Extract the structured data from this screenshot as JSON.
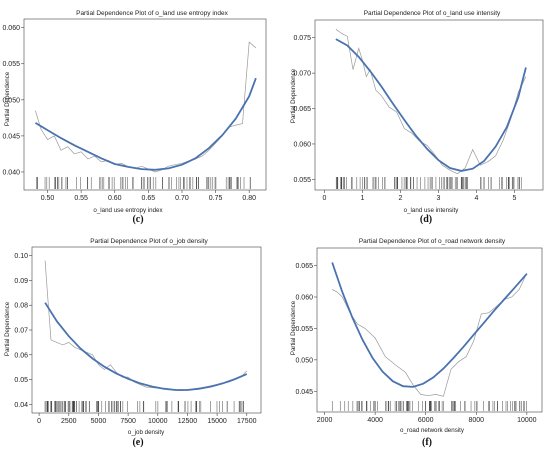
{
  "chart_data": [
    {
      "id": "c",
      "panel_label": "(c)",
      "type": "line",
      "title": "Partial Dependence Plot of o_land use entropy index",
      "xlabel": "o_land use entropy index",
      "ylabel": "Partial Dependence",
      "xlim": [
        0.465,
        0.825
      ],
      "ylim": [
        0.0375,
        0.0612
      ],
      "xticks": [
        0.5,
        0.55,
        0.6,
        0.65,
        0.7,
        0.75,
        0.8
      ],
      "xtick_labels": [
        "0.50",
        "0.55",
        "0.60",
        "0.65",
        "0.70",
        "0.75",
        "0.80"
      ],
      "yticks": [
        0.04,
        0.045,
        0.05,
        0.055,
        0.06
      ],
      "ytick_labels": [
        "0.040",
        "0.045",
        "0.050",
        "0.055",
        "0.060"
      ],
      "series": [
        {
          "style": "raw",
          "x": [
            0.482,
            0.49,
            0.5,
            0.51,
            0.52,
            0.53,
            0.54,
            0.55,
            0.56,
            0.57,
            0.58,
            0.59,
            0.6,
            0.61,
            0.62,
            0.63,
            0.64,
            0.65,
            0.66,
            0.67,
            0.68,
            0.69,
            0.7,
            0.71,
            0.72,
            0.73,
            0.74,
            0.75,
            0.76,
            0.77,
            0.78,
            0.79,
            0.8,
            0.81
          ],
          "y": [
            0.0485,
            0.046,
            0.0445,
            0.045,
            0.043,
            0.0435,
            0.0425,
            0.0428,
            0.0418,
            0.0422,
            0.0414,
            0.0416,
            0.041,
            0.0412,
            0.0407,
            0.0405,
            0.0408,
            0.0404,
            0.04,
            0.0403,
            0.0408,
            0.041,
            0.0412,
            0.0415,
            0.0418,
            0.0422,
            0.043,
            0.044,
            0.045,
            0.0462,
            0.0465,
            0.0467,
            0.058,
            0.0572
          ]
        },
        {
          "style": "fit",
          "x": [
            0.482,
            0.5,
            0.52,
            0.54,
            0.56,
            0.58,
            0.6,
            0.62,
            0.64,
            0.66,
            0.68,
            0.7,
            0.72,
            0.74,
            0.76,
            0.78,
            0.8,
            0.81
          ],
          "y": [
            0.0468,
            0.0458,
            0.0447,
            0.0437,
            0.0428,
            0.0419,
            0.0411,
            0.0407,
            0.0404,
            0.0403,
            0.0405,
            0.041,
            0.0419,
            0.0433,
            0.0451,
            0.0474,
            0.0505,
            0.053
          ]
        }
      ]
    },
    {
      "id": "d",
      "panel_label": "(d)",
      "type": "line",
      "title": "Partial Dependence Plot of o_land use intensity",
      "xlabel": "o_land use intensity",
      "ylabel": "Partial Dependence",
      "xlim": [
        -0.25,
        5.75
      ],
      "ylim": [
        0.0535,
        0.0775
      ],
      "xticks": [
        0,
        1,
        2,
        3,
        4,
        5
      ],
      "xtick_labels": [
        "0",
        "1",
        "2",
        "3",
        "4",
        "5"
      ],
      "yticks": [
        0.055,
        0.06,
        0.065,
        0.07,
        0.075
      ],
      "ytick_labels": [
        "0.055",
        "0.060",
        "0.065",
        "0.070",
        "0.075"
      ],
      "series": [
        {
          "style": "raw",
          "x": [
            0.3,
            0.45,
            0.6,
            0.75,
            0.9,
            1.0,
            1.1,
            1.2,
            1.35,
            1.5,
            1.7,
            1.9,
            2.1,
            2.3,
            2.5,
            2.7,
            2.9,
            3.1,
            3.3,
            3.5,
            3.7,
            3.9,
            4.1,
            4.3,
            4.5,
            4.7,
            4.9,
            5.1,
            5.3
          ],
          "y": [
            0.0762,
            0.0756,
            0.0752,
            0.0705,
            0.0735,
            0.0718,
            0.0695,
            0.0705,
            0.0676,
            0.0668,
            0.0652,
            0.0645,
            0.0622,
            0.0615,
            0.0604,
            0.0598,
            0.0585,
            0.057,
            0.0563,
            0.0558,
            0.0566,
            0.0592,
            0.057,
            0.0575,
            0.0583,
            0.0605,
            0.0635,
            0.0673,
            0.0695
          ]
        },
        {
          "style": "fit",
          "x": [
            0.3,
            0.6,
            0.9,
            1.2,
            1.5,
            1.8,
            2.1,
            2.4,
            2.7,
            3.0,
            3.3,
            3.6,
            3.9,
            4.2,
            4.5,
            4.8,
            5.1,
            5.3
          ],
          "y": [
            0.0748,
            0.0739,
            0.0723,
            0.0703,
            0.0681,
            0.0657,
            0.0634,
            0.0612,
            0.0593,
            0.0577,
            0.0566,
            0.0562,
            0.0565,
            0.0576,
            0.0596,
            0.0624,
            0.0666,
            0.0708
          ]
        }
      ]
    },
    {
      "id": "e",
      "panel_label": "(e)",
      "type": "line",
      "title": "Partial Dependence Plot of o_job density",
      "xlabel": "o_job density",
      "ylabel": "Partial Dependence",
      "xlim": [
        -600,
        18700
      ],
      "ylim": [
        0.0365,
        0.1035
      ],
      "xticks": [
        0,
        2500,
        5000,
        7500,
        10000,
        12500,
        15000,
        17500
      ],
      "xtick_labels": [
        "0",
        "2500",
        "5000",
        "7500",
        "10000",
        "12500",
        "15000",
        "17500"
      ],
      "yticks": [
        0.04,
        0.05,
        0.06,
        0.07,
        0.08,
        0.09,
        0.1
      ],
      "ytick_labels": [
        "0.04",
        "0.05",
        "0.06",
        "0.07",
        "0.08",
        "0.09",
        "0.10"
      ],
      "series": [
        {
          "style": "raw",
          "x": [
            500,
            700,
            1000,
            1500,
            2000,
            2500,
            3000,
            3500,
            4000,
            4500,
            5000,
            5500,
            6000,
            6500,
            7000,
            7500,
            8000,
            8500,
            9000,
            10000,
            11000,
            12000,
            13000,
            14000,
            15000,
            16000,
            17000,
            17500
          ],
          "y": [
            0.098,
            0.085,
            0.066,
            0.065,
            0.064,
            0.065,
            0.063,
            0.062,
            0.061,
            0.06,
            0.056,
            0.054,
            0.056,
            0.053,
            0.051,
            0.051,
            0.049,
            0.048,
            0.047,
            0.0465,
            0.046,
            0.0455,
            0.0462,
            0.047,
            0.048,
            0.049,
            0.051,
            0.0535
          ]
        },
        {
          "style": "fit",
          "x": [
            500,
            1500,
            2500,
            3500,
            4500,
            5500,
            6500,
            7500,
            8500,
            9500,
            10500,
            11500,
            12500,
            13500,
            14500,
            15500,
            16500,
            17500
          ],
          "y": [
            0.081,
            0.0735,
            0.0675,
            0.0625,
            0.0585,
            0.0552,
            0.0525,
            0.0503,
            0.0485,
            0.0472,
            0.0463,
            0.0458,
            0.0458,
            0.0463,
            0.0472,
            0.0485,
            0.0502,
            0.0522
          ]
        }
      ]
    },
    {
      "id": "f",
      "panel_label": "(f)",
      "type": "line",
      "title": "Partial Dependence Plot of o_road network density",
      "xlabel": "o_road network density",
      "ylabel": "Partial Dependence",
      "xlim": [
        1700,
        10600
      ],
      "ylim": [
        0.0417,
        0.0678
      ],
      "xticks": [
        2000,
        4000,
        6000,
        8000,
        10000
      ],
      "xtick_labels": [
        "2000",
        "4000",
        "6000",
        "8000",
        "10000"
      ],
      "yticks": [
        0.045,
        0.05,
        0.055,
        0.06,
        0.065
      ],
      "ytick_labels": [
        "0.045",
        "0.050",
        "0.055",
        "0.060",
        "0.065"
      ],
      "series": [
        {
          "style": "raw",
          "x": [
            2300,
            2500,
            2700,
            3000,
            3300,
            3600,
            4000,
            4400,
            4800,
            5200,
            5500,
            5800,
            6100,
            6400,
            6700,
            7000,
            7300,
            7600,
            7900,
            8200,
            8500,
            8800,
            9100,
            9400,
            9700,
            10000
          ],
          "y": [
            0.0612,
            0.0608,
            0.06,
            0.0575,
            0.0557,
            0.055,
            0.0535,
            0.0505,
            0.0492,
            0.048,
            0.046,
            0.0445,
            0.0443,
            0.0445,
            0.0442,
            0.0485,
            0.0497,
            0.0505,
            0.053,
            0.0573,
            0.0575,
            0.0585,
            0.0596,
            0.06,
            0.0612,
            0.0638
          ]
        },
        {
          "style": "fit",
          "x": [
            2300,
            2700,
            3100,
            3500,
            3900,
            4300,
            4700,
            5100,
            5500,
            5900,
            6300,
            6700,
            7100,
            7500,
            7900,
            8300,
            8700,
            9100,
            9500,
            10000
          ],
          "y": [
            0.0655,
            0.0608,
            0.0567,
            0.0532,
            0.0503,
            0.0481,
            0.0466,
            0.0458,
            0.0457,
            0.0462,
            0.0472,
            0.0486,
            0.0503,
            0.0521,
            0.054,
            0.0559,
            0.0578,
            0.0596,
            0.0614,
            0.0637
          ]
        }
      ]
    }
  ],
  "rug_counts": [
    90,
    100,
    110,
    100
  ],
  "colors": {
    "fit_line": "#4a72b0",
    "raw_line": "#9a9a9a",
    "rug": "#333333",
    "frame": "#444444"
  }
}
